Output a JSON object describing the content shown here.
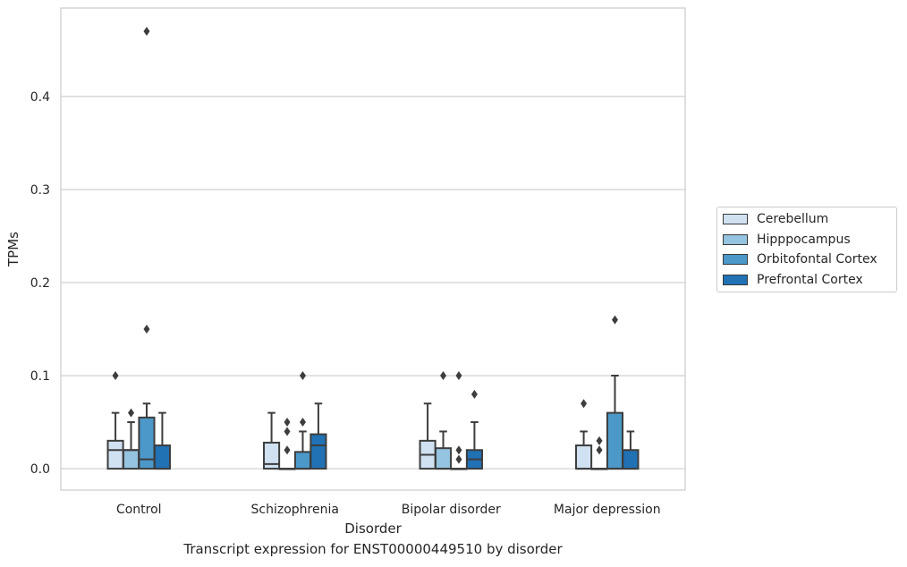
{
  "chart_data": {
    "type": "box",
    "xlabel": "Disorder",
    "ylabel": "TPMs",
    "caption": "Transcript expression for ENST00000449510 by disorder",
    "categories": [
      "Control",
      "Schizophrenia",
      "Bipolar disorder",
      "Major depression"
    ],
    "ylim": [
      -0.023,
      0.495
    ],
    "yticks": [
      0.0,
      0.1,
      0.2,
      0.3,
      0.4
    ],
    "ytick_labels": [
      "0.0",
      "0.1",
      "0.2",
      "0.3",
      "0.4"
    ],
    "grid": true,
    "legend_position": "right",
    "series": [
      {
        "name": "Cerebellum",
        "color": "#d0e1f2",
        "boxes": [
          {
            "min": 0.0,
            "q1": 0.0,
            "median": 0.02,
            "q3": 0.03,
            "max": 0.06,
            "outliers": [
              0.1
            ]
          },
          {
            "min": 0.0,
            "q1": 0.0,
            "median": 0.005,
            "q3": 0.028,
            "max": 0.06,
            "outliers": []
          },
          {
            "min": 0.0,
            "q1": 0.0,
            "median": 0.015,
            "q3": 0.03,
            "max": 0.07,
            "outliers": []
          },
          {
            "min": 0.0,
            "q1": 0.0,
            "median": 0.0,
            "q3": 0.025,
            "max": 0.04,
            "outliers": [
              0.07
            ]
          }
        ]
      },
      {
        "name": "Hipppocampus",
        "color": "#94c4df",
        "boxes": [
          {
            "min": 0.0,
            "q1": 0.0,
            "median": 0.02,
            "q3": 0.02,
            "max": 0.05,
            "outliers": [
              0.06
            ]
          },
          {
            "min": 0.0,
            "q1": 0.0,
            "median": 0.0,
            "q3": 0.0,
            "max": 0.0,
            "outliers": [
              0.02,
              0.04,
              0.05
            ]
          },
          {
            "min": 0.0,
            "q1": 0.0,
            "median": 0.0,
            "q3": 0.022,
            "max": 0.04,
            "outliers": [
              0.1
            ]
          },
          {
            "min": 0.0,
            "q1": 0.0,
            "median": 0.0,
            "q3": 0.0,
            "max": 0.0,
            "outliers": [
              0.02,
              0.03
            ]
          }
        ]
      },
      {
        "name": "Orbitofontal Cortex",
        "color": "#4b98c9",
        "boxes": [
          {
            "min": 0.0,
            "q1": 0.0,
            "median": 0.01,
            "q3": 0.055,
            "max": 0.07,
            "outliers": [
              0.15,
              0.47
            ]
          },
          {
            "min": 0.0,
            "q1": 0.0,
            "median": 0.0,
            "q3": 0.018,
            "max": 0.04,
            "outliers": [
              0.05,
              0.1
            ]
          },
          {
            "min": 0.0,
            "q1": 0.0,
            "median": 0.0,
            "q3": 0.0,
            "max": 0.0,
            "outliers": [
              0.01,
              0.02,
              0.1
            ]
          },
          {
            "min": 0.0,
            "q1": 0.0,
            "median": 0.0,
            "q3": 0.06,
            "max": 0.1,
            "outliers": [
              0.16
            ]
          }
        ]
      },
      {
        "name": "Prefrontal Cortex",
        "color": "#2171b5",
        "boxes": [
          {
            "min": 0.0,
            "q1": 0.0,
            "median": 0.0,
            "q3": 0.025,
            "max": 0.06,
            "outliers": []
          },
          {
            "min": 0.0,
            "q1": 0.0,
            "median": 0.025,
            "q3": 0.037,
            "max": 0.07,
            "outliers": []
          },
          {
            "min": 0.0,
            "q1": 0.0,
            "median": 0.01,
            "q3": 0.02,
            "max": 0.05,
            "outliers": [
              0.08
            ]
          },
          {
            "min": 0.0,
            "q1": 0.0,
            "median": 0.0,
            "q3": 0.02,
            "max": 0.04,
            "outliers": []
          }
        ]
      }
    ]
  }
}
